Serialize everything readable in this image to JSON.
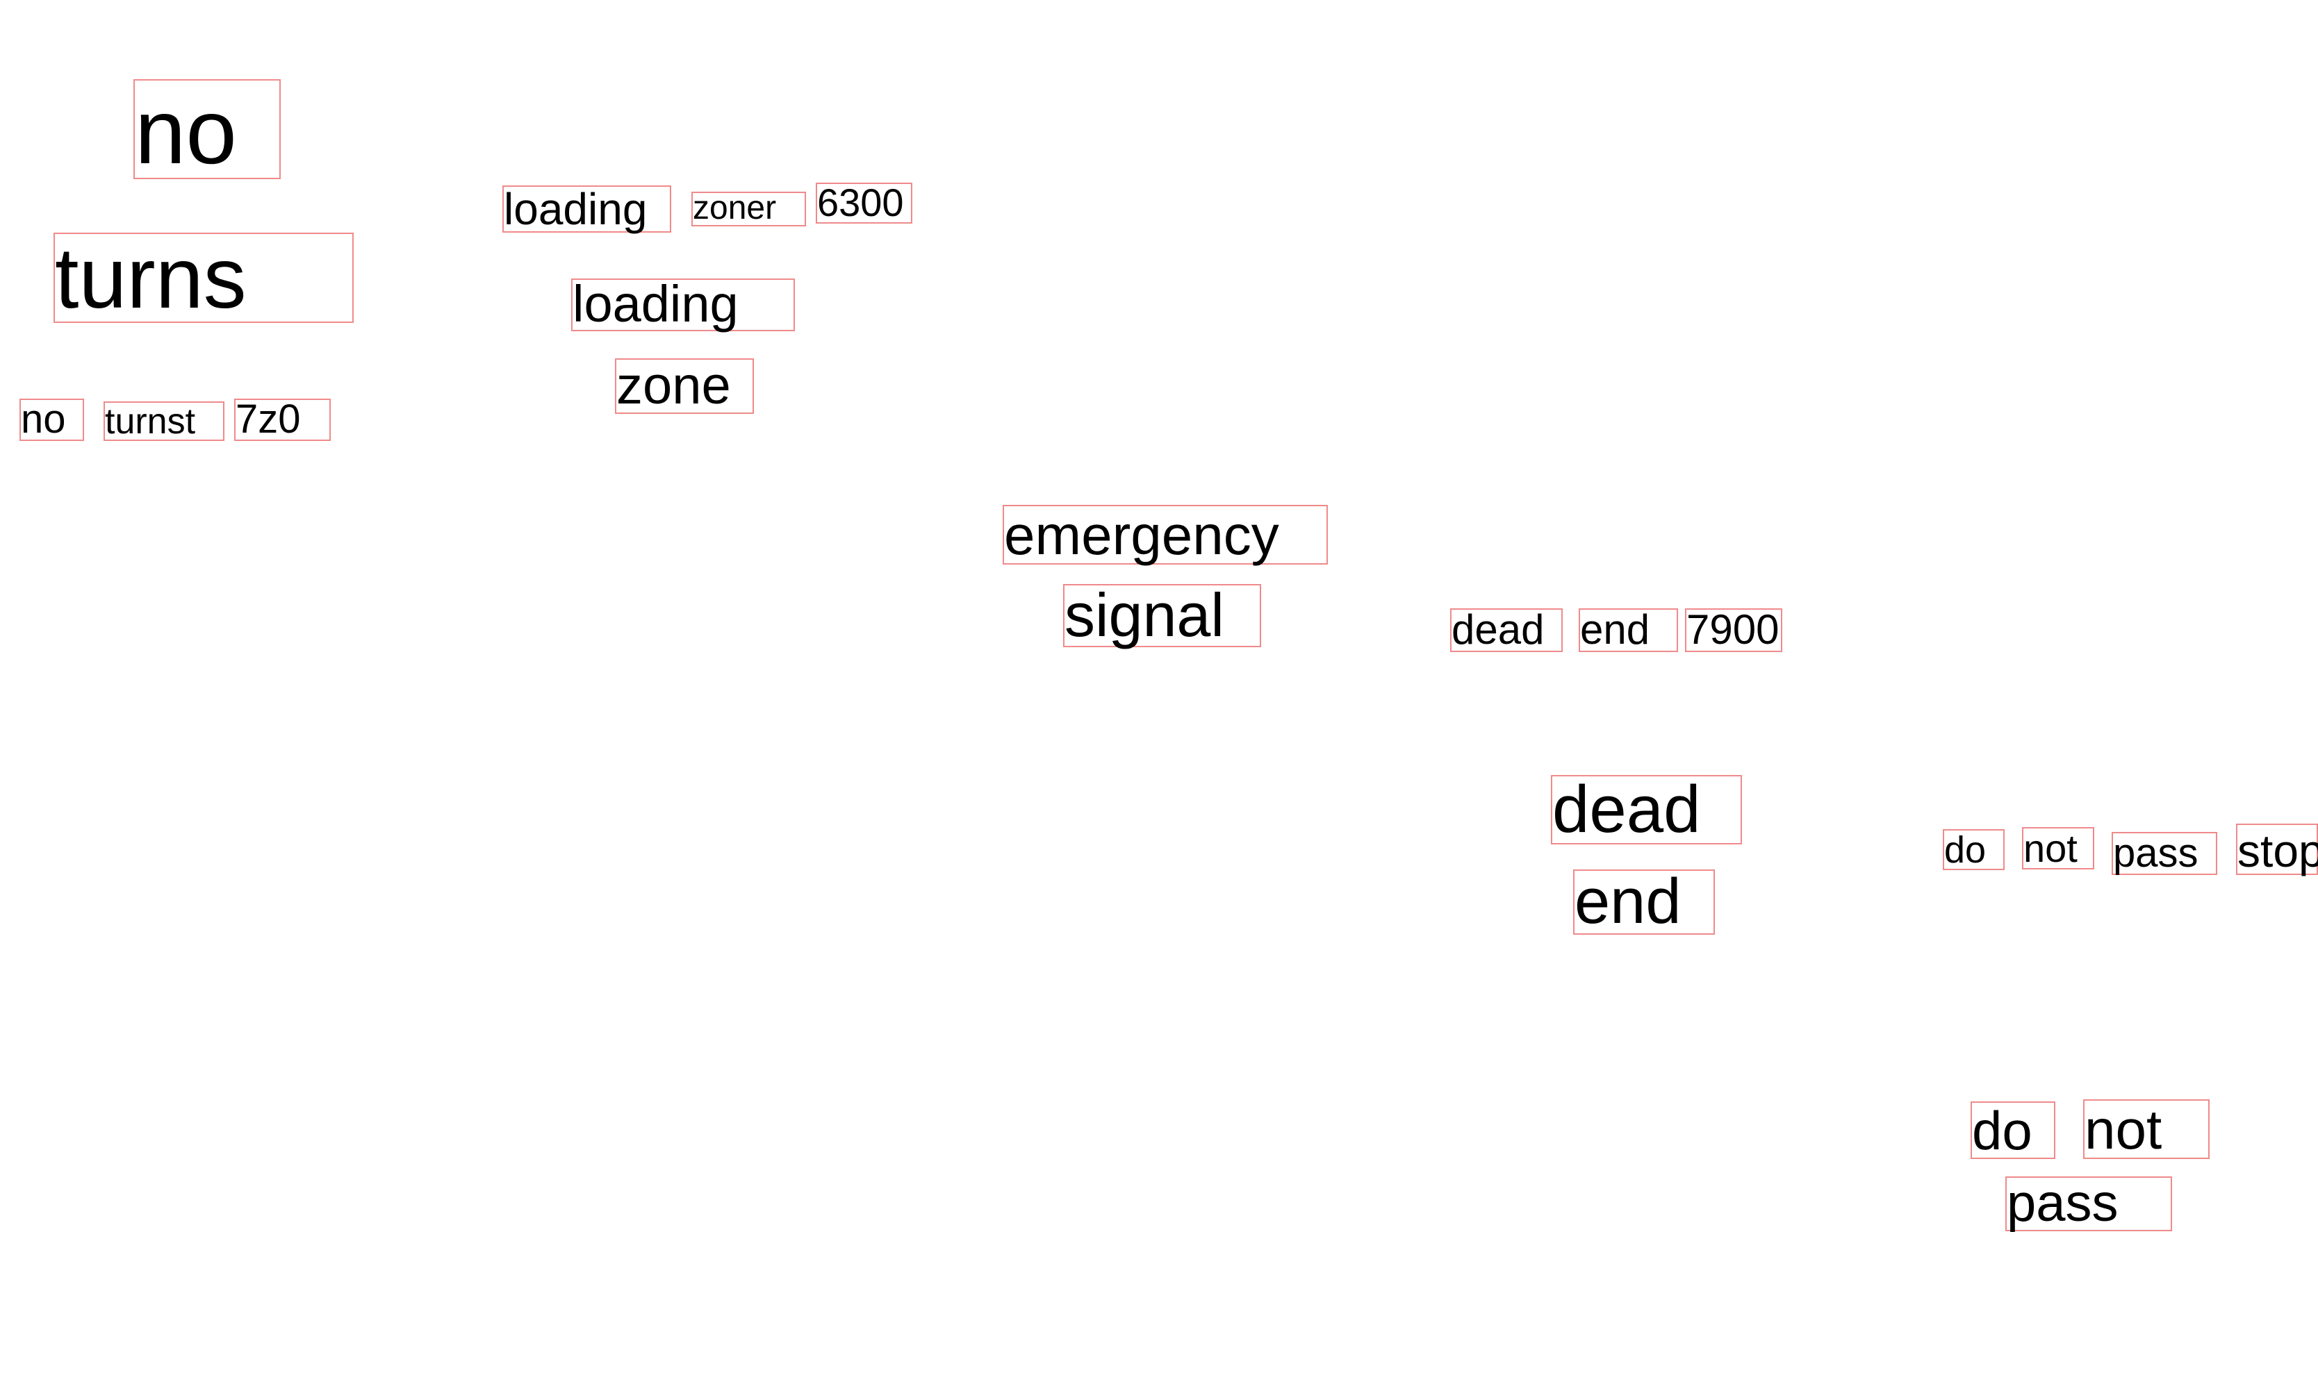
{
  "colors": {
    "background": "#ffffff",
    "text": "#000000",
    "box_outline": "#f08a8a"
  },
  "words": {
    "no_big": "no",
    "turns_big": "turns",
    "no_small": "no",
    "turnst_small": "turnst",
    "sevenz0_small": "7z0",
    "loading_small": "loading",
    "zoner_small": "zoner",
    "sixthree_small": "6300",
    "loading_big": "loading",
    "zone_big": "zone",
    "emergency_big": "emergency",
    "signal_big": "signal",
    "dead_small": "dead",
    "end_small": "end",
    "seventy9_small": "7900",
    "dead_big": "dead",
    "end_big": "end",
    "do_small": "do",
    "not_small": "not",
    "pass_small": "pass",
    "stop_small": "stop",
    "do_big": "do",
    "not_big": "not",
    "pass_big": "pass"
  }
}
